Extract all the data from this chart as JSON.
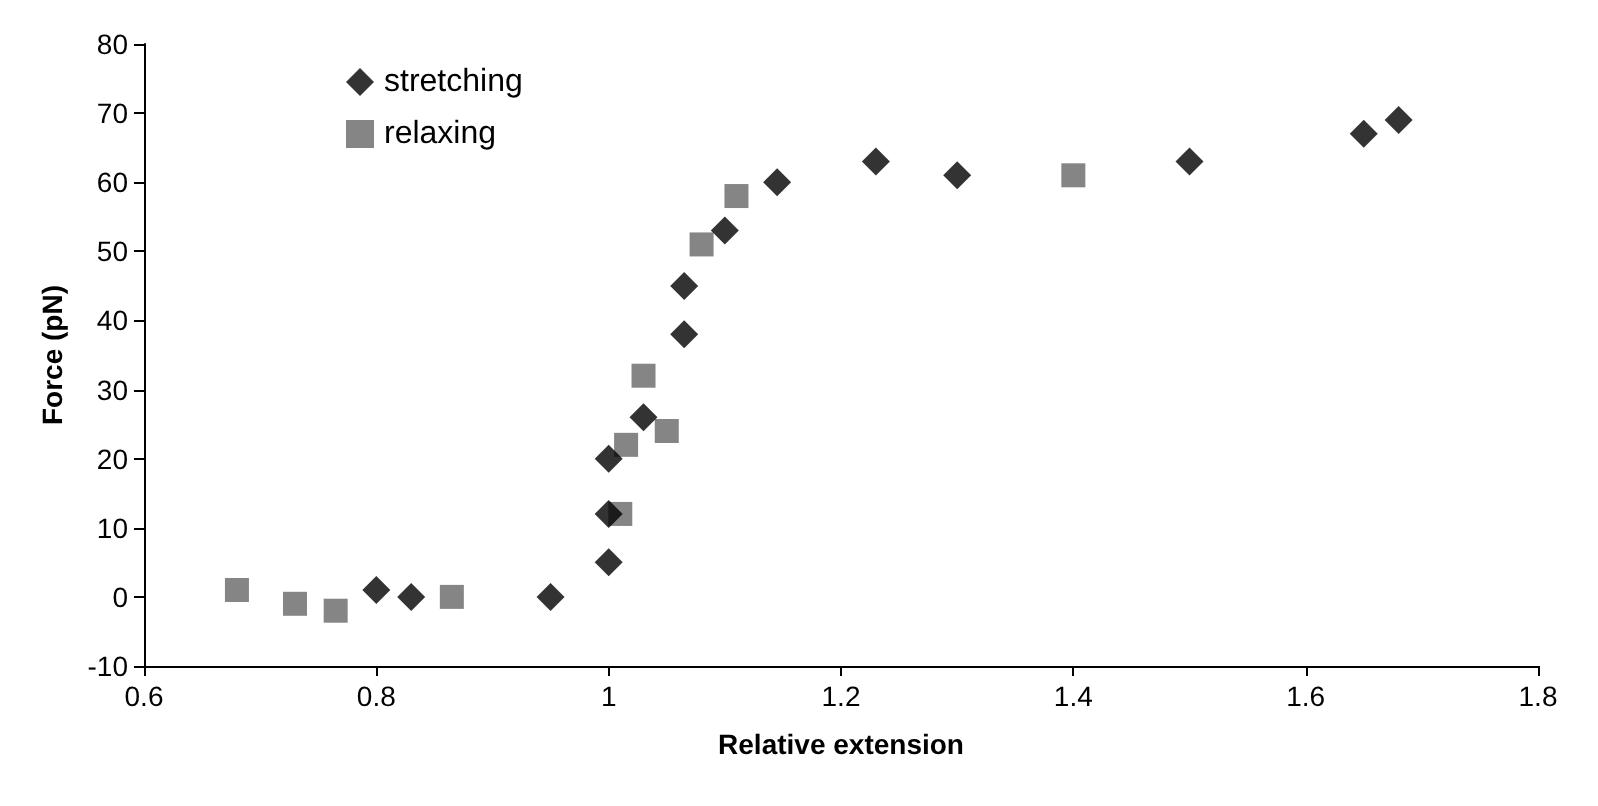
{
  "chart_data": {
    "type": "scatter",
    "xlabel": "Relative extension",
    "ylabel": "Force (pN)",
    "xlim": [
      0.6,
      1.8
    ],
    "xticks": [
      0.6,
      0.8,
      1,
      1.2,
      1.4,
      1.6,
      1.8
    ],
    "ylim": [
      -10,
      80
    ],
    "yticks": [
      -10,
      0,
      10,
      20,
      30,
      40,
      50,
      60,
      70,
      80
    ],
    "grid": false,
    "legend": "top left",
    "series": [
      {
        "name": "stretching",
        "color": "#000000",
        "marker": "diamond",
        "x": [
          0.8,
          0.83,
          0.95,
          1.0,
          1.0,
          1.0,
          1.03,
          1.065,
          1.065,
          1.1,
          1.145,
          1.23,
          1.3,
          1.5,
          1.65,
          1.68
        ],
        "values": [
          1,
          0,
          0,
          5,
          12,
          20,
          26,
          38,
          45,
          53,
          60,
          63,
          61,
          63,
          67,
          69
        ]
      },
      {
        "name": "relaxing",
        "color": "#666666",
        "marker": "square",
        "x": [
          0.68,
          0.73,
          0.765,
          0.865,
          1.01,
          1.015,
          1.03,
          1.05,
          1.08,
          1.11,
          1.4
        ],
        "values": [
          1,
          -1,
          -2,
          0,
          12,
          22,
          32,
          24,
          51,
          58,
          61
        ]
      }
    ]
  }
}
